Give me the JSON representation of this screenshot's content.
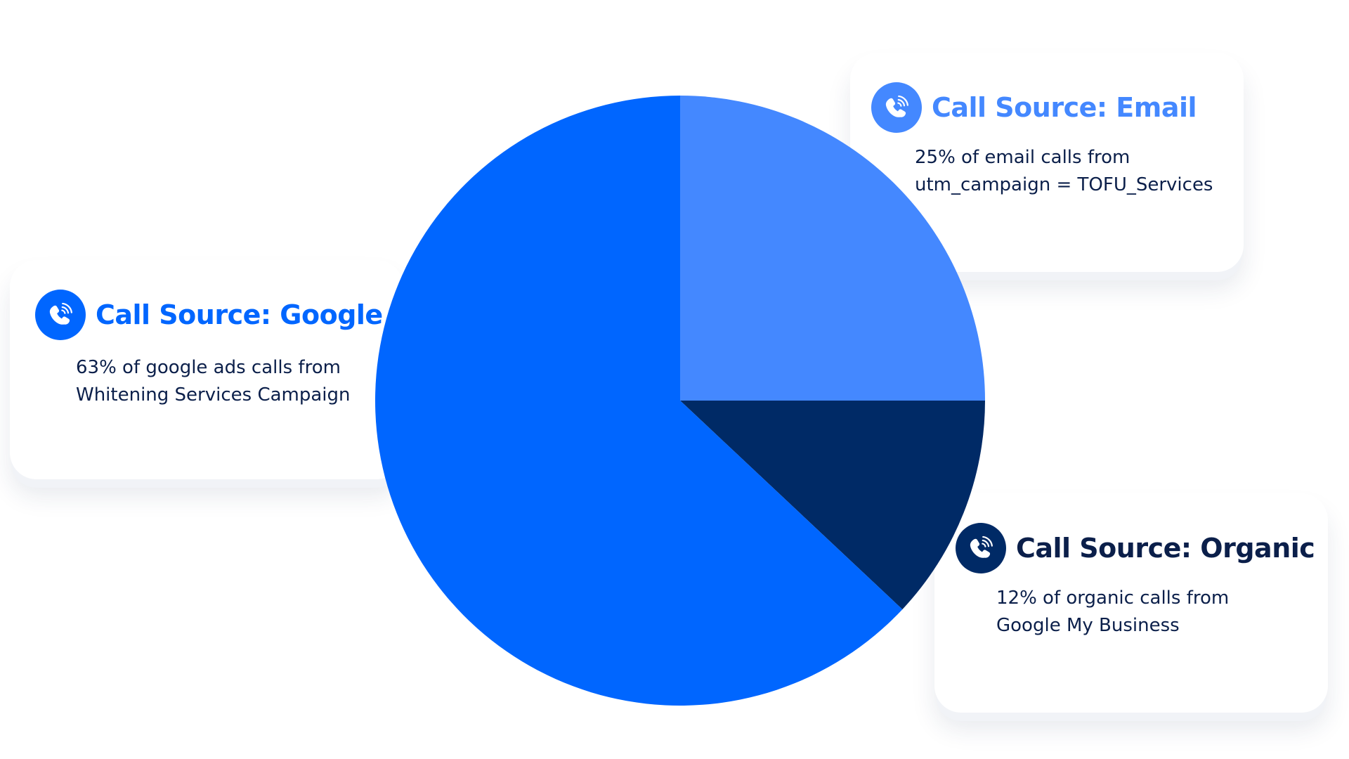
{
  "colors": {
    "google_ads": "#0066ff",
    "email": "#4488ff",
    "organic": "#002a66",
    "title_dark": "#0b1f4a"
  },
  "cards": {
    "email": {
      "icon": "phone-icon",
      "title": "Call Source:  Email",
      "line1": "25% of email calls from",
      "line2": "utm_campaign = TOFU_Services"
    },
    "google_ads": {
      "icon": "phone-icon",
      "title": "Call Source: Google Ads",
      "line1": "63% of google ads calls from",
      "line2": "Whitening Services Campaign"
    },
    "organic": {
      "icon": "phone-icon",
      "title": "Call Source: Organic",
      "line1": "12% of organic calls from",
      "line2": "Google My Business"
    }
  },
  "chart_data": {
    "type": "pie",
    "categories": [
      "Email",
      "Organic",
      "Google Ads"
    ],
    "values": [
      25,
      12,
      63
    ],
    "colors": [
      "#4488ff",
      "#002a66",
      "#0066ff"
    ],
    "start": "12 o'clock",
    "direction": "clockwise",
    "legend": "callout cards"
  }
}
